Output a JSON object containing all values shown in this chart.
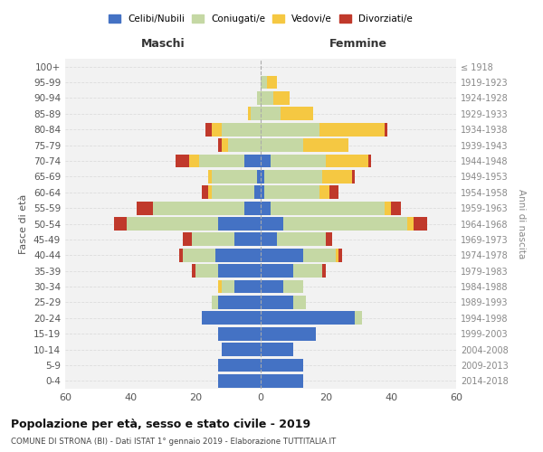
{
  "age_groups": [
    "0-4",
    "5-9",
    "10-14",
    "15-19",
    "20-24",
    "25-29",
    "30-34",
    "35-39",
    "40-44",
    "45-49",
    "50-54",
    "55-59",
    "60-64",
    "65-69",
    "70-74",
    "75-79",
    "80-84",
    "85-89",
    "90-94",
    "95-99",
    "100+"
  ],
  "birth_years": [
    "2014-2018",
    "2009-2013",
    "2004-2008",
    "1999-2003",
    "1994-1998",
    "1989-1993",
    "1984-1988",
    "1979-1983",
    "1974-1978",
    "1969-1973",
    "1964-1968",
    "1959-1963",
    "1954-1958",
    "1949-1953",
    "1944-1948",
    "1939-1943",
    "1934-1938",
    "1929-1933",
    "1924-1928",
    "1919-1923",
    "≤ 1918"
  ],
  "maschi": {
    "celibi": [
      13,
      13,
      12,
      13,
      18,
      13,
      8,
      13,
      14,
      8,
      13,
      5,
      2,
      1,
      5,
      0,
      0,
      0,
      0,
      0,
      0
    ],
    "coniugati": [
      0,
      0,
      0,
      0,
      0,
      2,
      4,
      7,
      10,
      13,
      28,
      28,
      13,
      14,
      14,
      10,
      12,
      3,
      1,
      0,
      0
    ],
    "vedovi": [
      0,
      0,
      0,
      0,
      0,
      0,
      1,
      0,
      0,
      0,
      0,
      0,
      1,
      1,
      3,
      2,
      3,
      1,
      0,
      0,
      0
    ],
    "divorziati": [
      0,
      0,
      0,
      0,
      0,
      0,
      0,
      1,
      1,
      3,
      4,
      5,
      2,
      0,
      4,
      1,
      2,
      0,
      0,
      0,
      0
    ]
  },
  "femmine": {
    "nubili": [
      13,
      13,
      10,
      17,
      29,
      10,
      7,
      10,
      13,
      5,
      7,
      3,
      1,
      1,
      3,
      0,
      0,
      0,
      0,
      0,
      0
    ],
    "coniugate": [
      0,
      0,
      0,
      0,
      2,
      4,
      6,
      9,
      10,
      15,
      38,
      35,
      17,
      18,
      17,
      13,
      18,
      6,
      4,
      2,
      0
    ],
    "vedove": [
      0,
      0,
      0,
      0,
      0,
      0,
      0,
      0,
      1,
      0,
      2,
      2,
      3,
      9,
      13,
      14,
      20,
      10,
      5,
      3,
      0
    ],
    "divorziate": [
      0,
      0,
      0,
      0,
      0,
      0,
      0,
      1,
      1,
      2,
      4,
      3,
      3,
      1,
      1,
      0,
      1,
      0,
      0,
      0,
      0
    ]
  },
  "colors": {
    "celibi": "#4472C4",
    "coniugati": "#C5D8A4",
    "vedovi": "#F5C842",
    "divorziati": "#C0392B"
  },
  "xlim": 60,
  "title": "Popolazione per età, sesso e stato civile - 2019",
  "subtitle": "COMUNE DI STRONA (BI) - Dati ISTAT 1° gennaio 2019 - Elaborazione TUTTITALIA.IT",
  "maschi_label": "Maschi",
  "femmine_label": "Femmine",
  "ylabel": "Fasce di età",
  "ylabel_right": "Anni di nascita",
  "legend_labels": [
    "Celibi/Nubili",
    "Coniugati/e",
    "Vedovi/e",
    "Divorziati/e"
  ],
  "bg_color": "#FFFFFF",
  "plot_bg_color": "#F2F2F2",
  "grid_color": "#DDDDDD",
  "bar_height": 0.85
}
